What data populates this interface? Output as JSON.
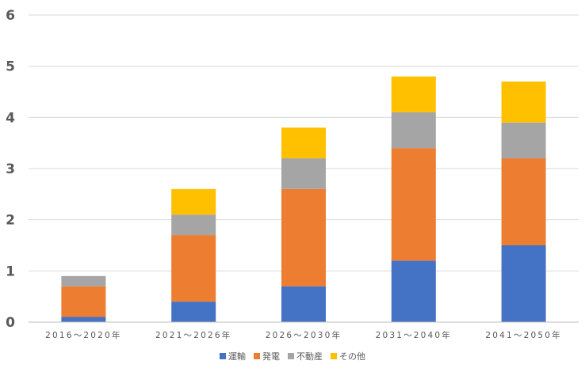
{
  "chart_data": {
    "type": "bar",
    "stacked": true,
    "categories": [
      "2016～2020年",
      "2021～2026年",
      "2026～2030年",
      "2031～2040年",
      "2041～2050年"
    ],
    "series": [
      {
        "name": "運輸",
        "color": "#4472c4",
        "values": [
          0.1,
          0.4,
          0.7,
          1.2,
          1.5
        ]
      },
      {
        "name": "発電",
        "color": "#ed7d31",
        "values": [
          0.6,
          1.3,
          1.9,
          2.2,
          1.7
        ]
      },
      {
        "name": "不動産",
        "color": "#a5a5a5",
        "values": [
          0.2,
          0.4,
          0.6,
          0.7,
          0.7
        ]
      },
      {
        "name": "その他",
        "color": "#ffc000",
        "values": [
          0.0,
          0.5,
          0.6,
          0.7,
          0.8
        ]
      }
    ],
    "ylim": [
      0,
      6
    ],
    "yticks": [
      "0",
      "1",
      "2",
      "3",
      "4",
      "5",
      "6"
    ],
    "title": "",
    "xlabel": "",
    "ylabel": "",
    "grid": true,
    "legend_position": "bottom"
  }
}
